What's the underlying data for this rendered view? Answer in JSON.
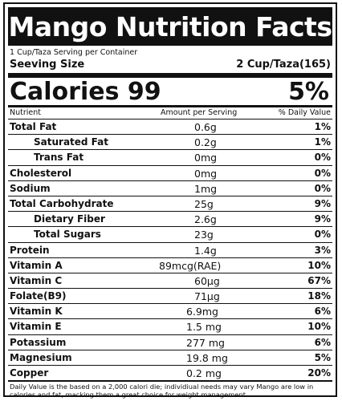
{
  "title": "Mango Nutrition Facts",
  "servings_text": "1 Cup/Taza Serving per Container",
  "serving_size": {
    "label": "Seeving Size",
    "value": "2 Cup/Taza(165)"
  },
  "calories": {
    "label": "Calories 99",
    "percent": "5%"
  },
  "columns": {
    "nutrient": "Nutrient",
    "amount": "Amount per Serving",
    "daily": "% Daily Value"
  },
  "nutrients": [
    {
      "name": "Total Fat",
      "amount": "0.6g",
      "daily": "1%"
    },
    {
      "name": "Saturated Fat",
      "amount": "0.2g",
      "daily": "1%"
    },
    {
      "name": "Trans Fat",
      "amount": "0mg",
      "daily": "0%"
    },
    {
      "name": "Cholesterol",
      "amount": "0mg",
      "daily": "0%"
    },
    {
      "name": "Sodium",
      "amount": "1mg",
      "daily": "0%"
    },
    {
      "name": "Total Carbohydrate",
      "amount": "25g",
      "daily": "9%"
    },
    {
      "name": "Dietary Fiber",
      "amount": "2.6g",
      "daily": "9%"
    },
    {
      "name": "Total Sugars",
      "amount": "23g",
      "daily": "0%"
    },
    {
      "name": "Protein",
      "amount": "1.4g",
      "daily": "3%"
    },
    {
      "name": "Vitamin A",
      "amount": "89mcg(RAE)",
      "daily": "10%"
    },
    {
      "name": "Vitamin C",
      "amount": "60µg",
      "daily": "67%"
    },
    {
      "name": "Folate(B9)",
      "amount": "71µg",
      "daily": "18%"
    },
    {
      "name": "Vitamin K",
      "amount": "6.9mg",
      "daily": "6%"
    },
    {
      "name": "Vitamin E",
      "amount": "1.5 mg",
      "daily": "10%"
    },
    {
      "name": "Potassium",
      "amount": "277 mg",
      "daily": "6%"
    },
    {
      "name": "Magnesium",
      "amount": "19.8 mg",
      "daily": "5%"
    },
    {
      "name": "Copper",
      "amount": "0.2 mg",
      "daily": "20%"
    }
  ],
  "footnote": "Daily Value is the based on a 2,000 calori die; individiual needs may vary Mango are low in calories and fat, macking them a great choice for weight management."
}
